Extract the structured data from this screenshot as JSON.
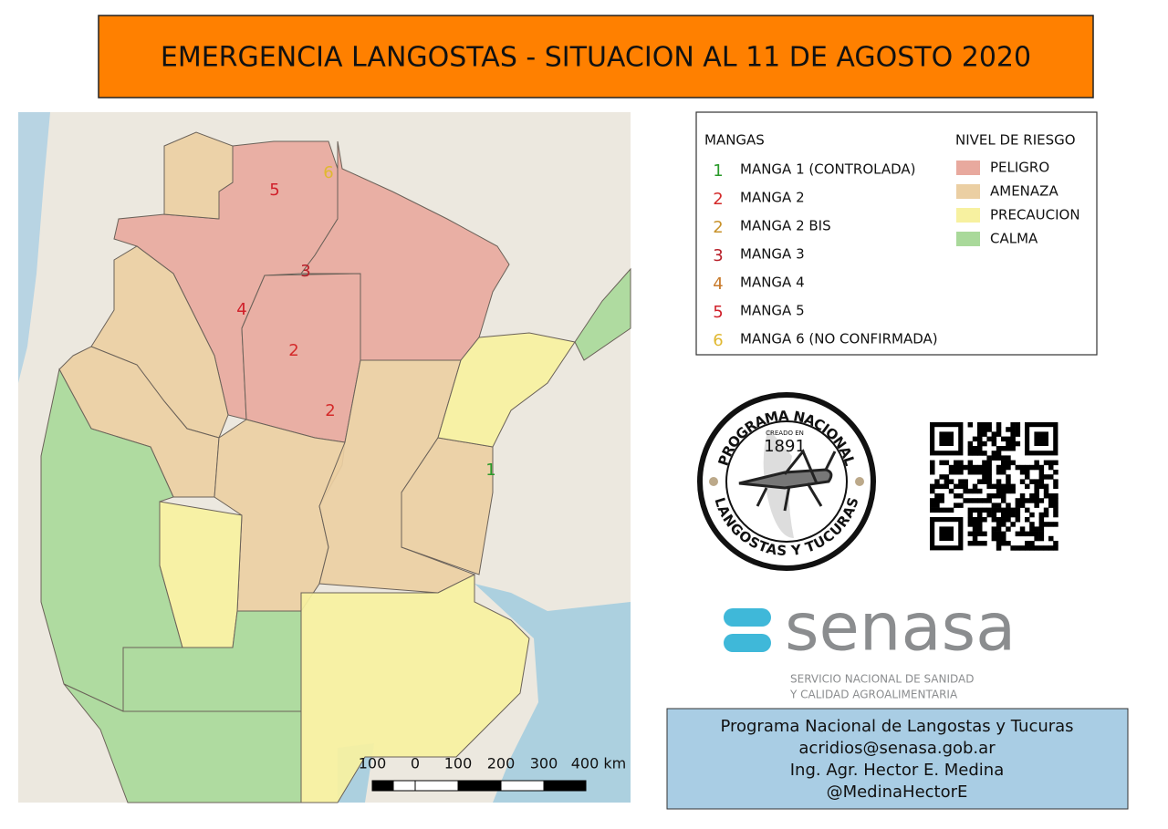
{
  "header": {
    "title": "EMERGENCIA LANGOSTAS - SITUACION AL 11 DE AGOSTO 2020"
  },
  "map": {
    "labels": [
      {
        "text": "5",
        "color": "#d0202a"
      },
      {
        "text": "6",
        "color": "#e0b830"
      },
      {
        "text": "3",
        "color": "#b8202a"
      },
      {
        "text": "4",
        "color": "#d0202a"
      },
      {
        "text": "2",
        "color": "#d42a2a"
      },
      {
        "text": "2",
        "color": "#d42a2a"
      },
      {
        "text": "1",
        "color": "#2a9a2a"
      }
    ],
    "scale_bar": {
      "labels": [
        "100",
        "0",
        "100",
        "200",
        "300",
        "400 km"
      ]
    }
  },
  "legend": {
    "mangas_title": "MANGAS",
    "mangas": [
      {
        "number": "1",
        "label": "MANGA 1 (CONTROLADA)",
        "color": "#2a9a2a"
      },
      {
        "number": "2",
        "label": "MANGA 2",
        "color": "#d42a2a"
      },
      {
        "number": "2",
        "label": "MANGA 2 BIS",
        "color": "#c8922a"
      },
      {
        "number": "3",
        "label": "MANGA 3",
        "color": "#b8202a"
      },
      {
        "number": "4",
        "label": "MANGA 4",
        "color": "#c87a2a"
      },
      {
        "number": "5",
        "label": "MANGA 5",
        "color": "#d0202a"
      },
      {
        "number": "6",
        "label": "MANGA 6 (NO CONFIRMADA)",
        "color": "#e0b830"
      }
    ],
    "riesgo_title": "NIVEL DE RIESGO",
    "riesgo": [
      {
        "label": "PELIGRO",
        "color": "#e8a99e"
      },
      {
        "label": "AMENAZA",
        "color": "#ebcfa3"
      },
      {
        "label": "PRECAUCION",
        "color": "#f7f1a0"
      },
      {
        "label": "CALMA",
        "color": "#a9d99a"
      }
    ]
  },
  "logo": {
    "top": "PROGRAMA NACIONAL",
    "created": "CREADO EN",
    "year": "1891",
    "bottom": "LANGOSTAS Y TUCURAS"
  },
  "senasa": {
    "name": "senasa",
    "line1": "SERVICIO NACIONAL DE SANIDAD",
    "line2": "Y CALIDAD AGROALIMENTARIA"
  },
  "contact": {
    "lines": [
      "Programa Nacional de Langostas y Tucuras",
      "acridios@senasa.gob.ar",
      "Ing. Agr. Hector E. Medina",
      "@MedinaHectorE"
    ]
  }
}
